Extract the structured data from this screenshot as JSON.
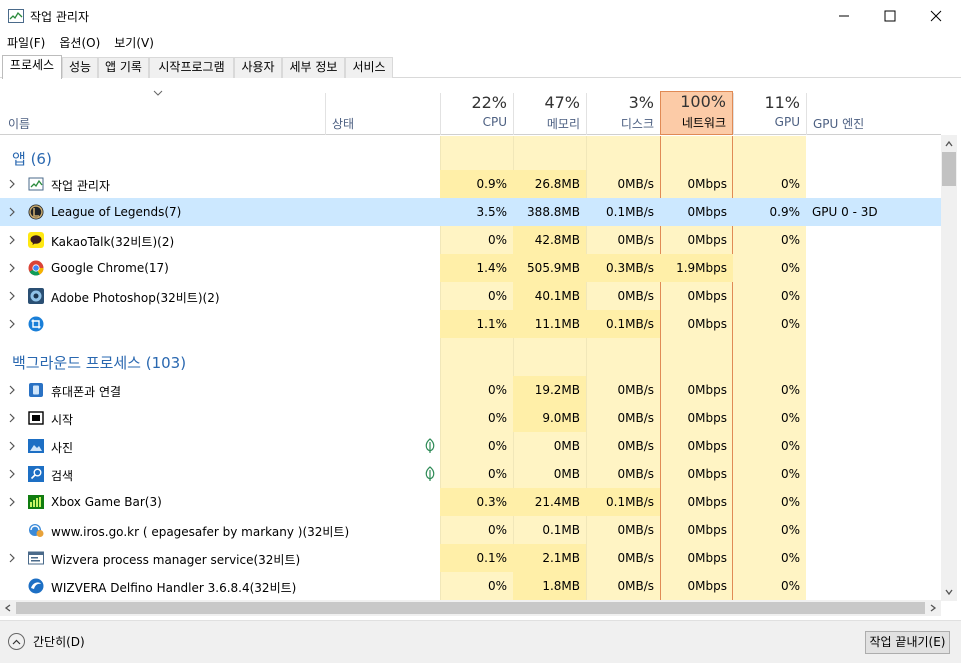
{
  "window": {
    "title": "작업 관리자"
  },
  "menu": [
    "파일(F)",
    "옵션(O)",
    "보기(V)"
  ],
  "tabs": [
    "프로세스",
    "성능",
    "앱 기록",
    "시작프로그램",
    "사용자",
    "세부 정보",
    "서비스"
  ],
  "header": {
    "name": "이름",
    "status": "상태",
    "columns": [
      {
        "pct": "22%",
        "label": "CPU"
      },
      {
        "pct": "47%",
        "label": "메모리"
      },
      {
        "pct": "3%",
        "label": "디스크"
      },
      {
        "pct": "100%",
        "label": "네트워크"
      },
      {
        "pct": "11%",
        "label": "GPU"
      },
      {
        "pct": "",
        "label": "GPU 엔진"
      }
    ]
  },
  "groups": {
    "apps": "앱 (6)",
    "background": "백그라운드 프로세스 (103)"
  },
  "rows": [
    {
      "name": "작업 관리자",
      "icon": "task-manager-icon",
      "expand": true,
      "cpu": "0.9%",
      "mem": "26.8MB",
      "disk": "0MB/s",
      "net": "0Mbps",
      "gpu": "0%",
      "engine": ""
    },
    {
      "name": "League of Legends(7)",
      "icon": "league-of-legends-icon",
      "expand": true,
      "cpu": "3.5%",
      "mem": "388.8MB",
      "disk": "0.1MB/s",
      "net": "0Mbps",
      "gpu": "0.9%",
      "engine": "GPU 0 - 3D"
    },
    {
      "name": "KakaoTalk(32비트)(2)",
      "icon": "kakaotalk-icon",
      "expand": true,
      "cpu": "0%",
      "mem": "42.8MB",
      "disk": "0MB/s",
      "net": "0Mbps",
      "gpu": "0%",
      "engine": ""
    },
    {
      "name": "Google Chrome(17)",
      "icon": "chrome-icon",
      "expand": true,
      "cpu": "1.4%",
      "mem": "505.9MB",
      "disk": "0.3MB/s",
      "net": "1.9Mbps",
      "gpu": "0%",
      "engine": ""
    },
    {
      "name": "Adobe Photoshop(32비트)(2)",
      "icon": "photoshop-icon",
      "expand": true,
      "cpu": "0%",
      "mem": "40.1MB",
      "disk": "0MB/s",
      "net": "0Mbps",
      "gpu": "0%",
      "engine": ""
    },
    {
      "name": "",
      "icon": "crop-tool-icon",
      "expand": true,
      "cpu": "1.1%",
      "mem": "11.1MB",
      "disk": "0.1MB/s",
      "net": "0Mbps",
      "gpu": "0%",
      "engine": ""
    },
    {
      "name": "휴대폰과 연결",
      "icon": "phone-link-icon",
      "expand": true,
      "cpu": "0%",
      "mem": "19.2MB",
      "disk": "0MB/s",
      "net": "0Mbps",
      "gpu": "0%",
      "engine": ""
    },
    {
      "name": "시작",
      "icon": "start-icon",
      "expand": true,
      "cpu": "0%",
      "mem": "9.0MB",
      "disk": "0MB/s",
      "net": "0Mbps",
      "gpu": "0%",
      "engine": ""
    },
    {
      "name": "사진",
      "icon": "photos-icon",
      "expand": true,
      "cpu": "0%",
      "mem": "0MB",
      "disk": "0MB/s",
      "net": "0Mbps",
      "gpu": "0%",
      "engine": ""
    },
    {
      "name": "검색",
      "icon": "search-icon",
      "expand": true,
      "cpu": "0%",
      "mem": "0MB",
      "disk": "0MB/s",
      "net": "0Mbps",
      "gpu": "0%",
      "engine": ""
    },
    {
      "name": "Xbox Game Bar(3)",
      "icon": "xbox-game-bar-icon",
      "expand": true,
      "cpu": "0.3%",
      "mem": "21.4MB",
      "disk": "0.1MB/s",
      "net": "0Mbps",
      "gpu": "0%",
      "engine": ""
    },
    {
      "name": "www.iros.go.kr ( epagesafer by markany )(32비트)",
      "icon": "epagesafer-icon",
      "expand": false,
      "cpu": "0%",
      "mem": "0.1MB",
      "disk": "0MB/s",
      "net": "0Mbps",
      "gpu": "0%",
      "engine": ""
    },
    {
      "name": "Wizvera process manager service(32비트)",
      "icon": "service-window-icon",
      "expand": true,
      "cpu": "0.1%",
      "mem": "2.1MB",
      "disk": "0MB/s",
      "net": "0Mbps",
      "gpu": "0%",
      "engine": ""
    },
    {
      "name": "WIZVERA Delfino Handler 3.6.8.4(32비트)",
      "icon": "delfino-icon",
      "expand": false,
      "cpu": "0%",
      "mem": "1.8MB",
      "disk": "0MB/s",
      "net": "0Mbps",
      "gpu": "0%",
      "engine": ""
    }
  ],
  "footer": {
    "less_details": "간단히(D)",
    "end_task": "작업 끝내기(E)"
  },
  "colors": {
    "heat_light": "#fff4c4",
    "heat_medium": "#ffefa8",
    "network_header": "#fccba7",
    "selected_row": "#cce8ff",
    "group_title": "#2a68b0"
  }
}
